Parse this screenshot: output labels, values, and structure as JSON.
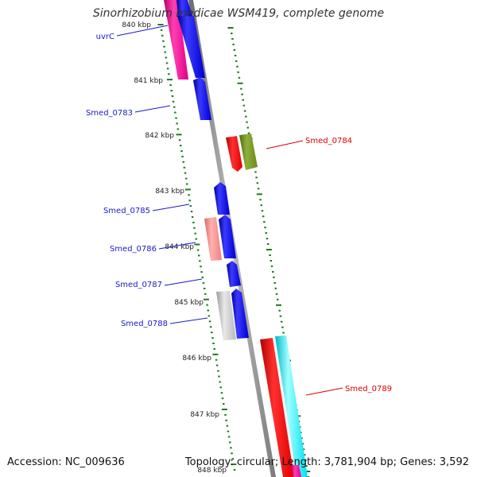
{
  "title": "Sinorhizobium medicae WSM419, complete genome",
  "footer": {
    "accession": "Accession: NC_009636",
    "summary": "Topology: circular; Length: 3,781,904 bp; Genes: 3,592"
  },
  "colors": {
    "backbone": "#8a8a8a",
    "ticks": "#1e7a1e",
    "forward_label": "#1a1acc",
    "reverse_label": "#dd0000"
  },
  "scale_labels": [
    "840 kbp",
    "841 kbp",
    "842 kbp",
    "843 kbp",
    "844 kbp",
    "845 kbp",
    "846 kbp",
    "847 kbp",
    "848 kbp"
  ],
  "gene_labels": [
    {
      "name": "uvrC",
      "strand": "forward"
    },
    {
      "name": "Smed_0783",
      "strand": "forward"
    },
    {
      "name": "Smed_0784",
      "strand": "reverse"
    },
    {
      "name": "Smed_0785",
      "strand": "forward"
    },
    {
      "name": "Smed_0786",
      "strand": "forward"
    },
    {
      "name": "Smed_0787",
      "strand": "forward"
    },
    {
      "name": "Smed_0788",
      "strand": "forward"
    },
    {
      "name": "Smed_0789",
      "strand": "reverse"
    }
  ]
}
